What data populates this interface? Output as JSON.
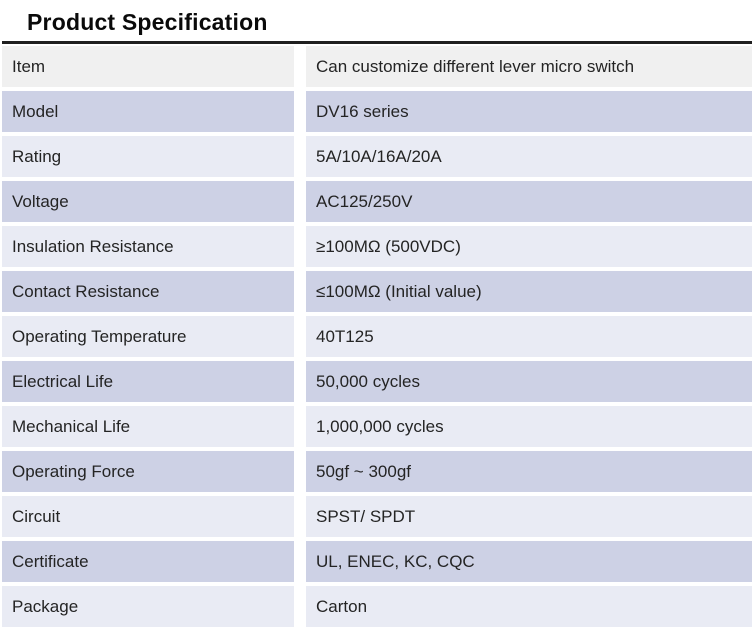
{
  "page": {
    "title": "Product Specification"
  },
  "colors": {
    "top_border": "#1f1f1f",
    "row_first_bg": "#f0f0f0",
    "row_dark_bg": "#cdd1e5",
    "row_light_bg": "#e9ebf4",
    "text": "#242424"
  },
  "table": {
    "rows": [
      {
        "label": "Item",
        "value": "Can customize different lever micro switch"
      },
      {
        "label": "Model",
        "value": "DV16 series"
      },
      {
        "label": "Rating",
        "value": "5A/10A/16A/20A"
      },
      {
        "label": "Voltage",
        "value": "AC125/250V"
      },
      {
        "label": "Insulation Resistance",
        "value": "≥100MΩ (500VDC)"
      },
      {
        "label": "Contact Resistance",
        "value": "≤100MΩ (Initial value)"
      },
      {
        "label": "Operating Temperature",
        "value": "40T125"
      },
      {
        "label": "Electrical Life",
        "value": "50,000 cycles"
      },
      {
        "label": "Mechanical Life",
        "value": "1,000,000 cycles"
      },
      {
        "label": "Operating Force",
        "value": "50gf ~  300gf"
      },
      {
        "label": "Circuit",
        "value": "SPST/ SPDT"
      },
      {
        "label": "Certificate",
        "value": "UL, ENEC, KC, CQC"
      },
      {
        "label": "Package",
        "value": "Carton"
      }
    ]
  }
}
